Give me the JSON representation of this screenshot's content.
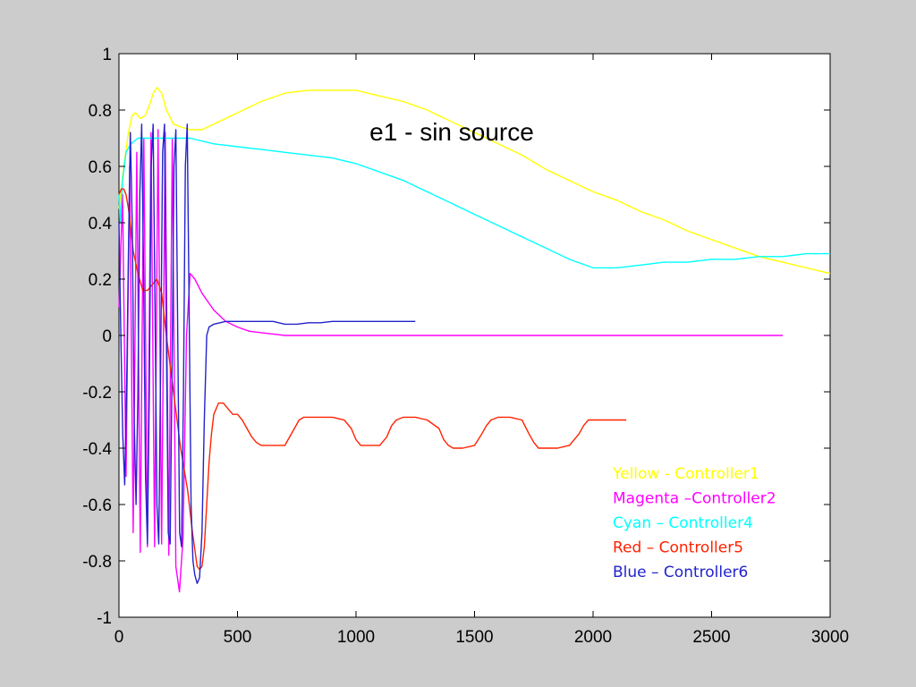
{
  "chart_data": {
    "type": "line",
    "title": "e1 - sin source",
    "xlabel": "",
    "ylabel": "",
    "xlim": [
      0,
      3000
    ],
    "ylim": [
      -1,
      1
    ],
    "xticks": [
      0,
      500,
      1000,
      1500,
      2000,
      2500,
      3000
    ],
    "yticks": [
      1,
      0.8,
      0.6,
      0.4,
      0.2,
      0,
      -0.2,
      -0.4,
      -0.6,
      -0.8,
      -1
    ],
    "ytick_labels": [
      "1",
      "0.8",
      "0.6",
      "0.4",
      "0.2",
      "0",
      "-0.2",
      "-0.4",
      "-0.6",
      "-0.8",
      "-1"
    ],
    "grid": false,
    "legend_position": "lower-right",
    "legend": [
      {
        "text": "Yellow - Controller1",
        "color": "#ffff00"
      },
      {
        "text": "Magenta –Controller2",
        "color": "#ff00ff"
      },
      {
        "text": "Cyan – Controller4",
        "color": "#00ffff"
      },
      {
        "text": "Red – Controller5",
        "color": "#ff2200"
      },
      {
        "text": "Blue – Controller6",
        "color": "#2222cc"
      }
    ],
    "series": [
      {
        "color": "#ffff00",
        "x": [
          0,
          20,
          40,
          55,
          70,
          90,
          110,
          130,
          145,
          160,
          180,
          200,
          230,
          260,
          300,
          350,
          400,
          500,
          600,
          700,
          800,
          900,
          1000,
          1100,
          1200,
          1300,
          1400,
          1500,
          1600,
          1700,
          1800,
          1900,
          2000,
          2100,
          2200,
          2300,
          2400,
          2500,
          2600,
          2700,
          2800,
          2900,
          3000
        ],
        "y": [
          0.45,
          0.6,
          0.72,
          0.78,
          0.79,
          0.77,
          0.78,
          0.82,
          0.86,
          0.88,
          0.86,
          0.8,
          0.75,
          0.74,
          0.73,
          0.73,
          0.75,
          0.79,
          0.83,
          0.86,
          0.87,
          0.87,
          0.87,
          0.85,
          0.83,
          0.8,
          0.76,
          0.72,
          0.68,
          0.64,
          0.59,
          0.55,
          0.51,
          0.48,
          0.44,
          0.41,
          0.37,
          0.34,
          0.31,
          0.28,
          0.26,
          0.24,
          0.22
        ]
      },
      {
        "color": "#ff00ff",
        "x": [
          0,
          15,
          30,
          45,
          60,
          75,
          90,
          105,
          120,
          135,
          150,
          165,
          180,
          195,
          210,
          225,
          240,
          255,
          270,
          285,
          300,
          320,
          350,
          400,
          450,
          500,
          550,
          600,
          650,
          700,
          750,
          800,
          1000,
          1200,
          1400,
          1600,
          1800,
          2000,
          2200,
          2400,
          2600,
          2800
        ],
        "y": [
          0.1,
          0.5,
          -0.5,
          0.6,
          -0.7,
          0.65,
          -0.77,
          0.7,
          -0.75,
          0.72,
          -0.75,
          0.73,
          -0.74,
          0.72,
          -0.78,
          0.7,
          -0.82,
          -0.91,
          -0.72,
          0.0,
          0.22,
          0.2,
          0.15,
          0.09,
          0.05,
          0.03,
          0.015,
          0.01,
          0.005,
          0.0,
          0.0,
          0.0,
          0.0,
          0.0,
          0.0,
          0.0,
          0.0,
          0.0,
          0.0,
          0.0,
          0.0,
          0.0
        ]
      },
      {
        "color": "#00ffff",
        "x": [
          0,
          5,
          15,
          30,
          50,
          80,
          120,
          200,
          300,
          400,
          500,
          600,
          700,
          800,
          900,
          1000,
          1100,
          1200,
          1300,
          1400,
          1500,
          1600,
          1700,
          1800,
          1900,
          2000,
          2050,
          2100,
          2200,
          2300,
          2400,
          2500,
          2600,
          2700,
          2800,
          2900,
          3000
        ],
        "y": [
          0.5,
          0.4,
          0.55,
          0.65,
          0.68,
          0.7,
          0.7,
          0.7,
          0.7,
          0.68,
          0.67,
          0.66,
          0.65,
          0.64,
          0.63,
          0.61,
          0.58,
          0.55,
          0.51,
          0.47,
          0.43,
          0.39,
          0.35,
          0.31,
          0.27,
          0.24,
          0.24,
          0.24,
          0.25,
          0.26,
          0.26,
          0.27,
          0.27,
          0.28,
          0.28,
          0.29,
          0.29
        ]
      },
      {
        "color": "#ff2200",
        "x": [
          0,
          10,
          20,
          30,
          40,
          50,
          60,
          80,
          100,
          120,
          140,
          160,
          180,
          200,
          230,
          260,
          290,
          310,
          330,
          340,
          350,
          360,
          370,
          380,
          390,
          400,
          420,
          440,
          460,
          480,
          500,
          520,
          540,
          560,
          580,
          600,
          620,
          650,
          700,
          720,
          740,
          760,
          780,
          800,
          850,
          900,
          950,
          980,
          1000,
          1020,
          1050,
          1100,
          1130,
          1150,
          1170,
          1200,
          1250,
          1300,
          1350,
          1370,
          1390,
          1410,
          1450,
          1500,
          1530,
          1550,
          1570,
          1600,
          1650,
          1700,
          1730,
          1750,
          1770,
          1800,
          1850,
          1900,
          1940,
          1960,
          1980,
          2000,
          2050,
          2100,
          2140
        ],
        "y": [
          0.5,
          0.52,
          0.52,
          0.5,
          0.45,
          0.38,
          0.3,
          0.22,
          0.16,
          0.16,
          0.18,
          0.2,
          0.15,
          0.0,
          -0.2,
          -0.4,
          -0.55,
          -0.7,
          -0.82,
          -0.83,
          -0.82,
          -0.75,
          -0.6,
          -0.45,
          -0.35,
          -0.28,
          -0.24,
          -0.24,
          -0.26,
          -0.28,
          -0.28,
          -0.3,
          -0.33,
          -0.36,
          -0.38,
          -0.39,
          -0.39,
          -0.39,
          -0.39,
          -0.36,
          -0.33,
          -0.3,
          -0.29,
          -0.29,
          -0.29,
          -0.29,
          -0.3,
          -0.33,
          -0.37,
          -0.39,
          -0.39,
          -0.39,
          -0.36,
          -0.32,
          -0.3,
          -0.29,
          -0.29,
          -0.3,
          -0.33,
          -0.37,
          -0.39,
          -0.4,
          -0.4,
          -0.39,
          -0.35,
          -0.32,
          -0.3,
          -0.29,
          -0.29,
          -0.3,
          -0.35,
          -0.38,
          -0.4,
          -0.4,
          -0.4,
          -0.39,
          -0.35,
          -0.32,
          -0.3,
          -0.3,
          -0.3,
          -0.3,
          -0.3
        ]
      },
      {
        "color": "#2222cc",
        "x": [
          0,
          8,
          16,
          24,
          32,
          40,
          48,
          56,
          64,
          72,
          80,
          88,
          96,
          104,
          112,
          120,
          128,
          136,
          144,
          152,
          160,
          168,
          176,
          184,
          192,
          200,
          208,
          216,
          224,
          232,
          240,
          248,
          256,
          264,
          272,
          280,
          288,
          296,
          304,
          312,
          320,
          330,
          340,
          350,
          360,
          370,
          380,
          400,
          450,
          500,
          550,
          600,
          650,
          700,
          750,
          800,
          850,
          900,
          950,
          1000,
          1050,
          1100,
          1150,
          1200,
          1250
        ],
        "y": [
          0.4,
          0.0,
          -0.35,
          -0.53,
          -0.2,
          0.3,
          0.72,
          0.4,
          -0.3,
          -0.6,
          -0.2,
          0.5,
          0.75,
          0.2,
          -0.5,
          -0.74,
          -0.2,
          0.6,
          0.75,
          0.1,
          -0.6,
          -0.74,
          -0.1,
          0.65,
          0.75,
          0.0,
          -0.7,
          -0.74,
          -0.1,
          0.6,
          0.73,
          0.0,
          -0.7,
          -0.75,
          -0.2,
          0.6,
          0.75,
          0.1,
          -0.6,
          -0.8,
          -0.85,
          -0.88,
          -0.86,
          -0.7,
          -0.3,
          0.0,
          0.03,
          0.04,
          0.05,
          0.05,
          0.05,
          0.05,
          0.05,
          0.04,
          0.04,
          0.045,
          0.045,
          0.05,
          0.05,
          0.05,
          0.05,
          0.05,
          0.05,
          0.05,
          0.05
        ]
      }
    ]
  }
}
